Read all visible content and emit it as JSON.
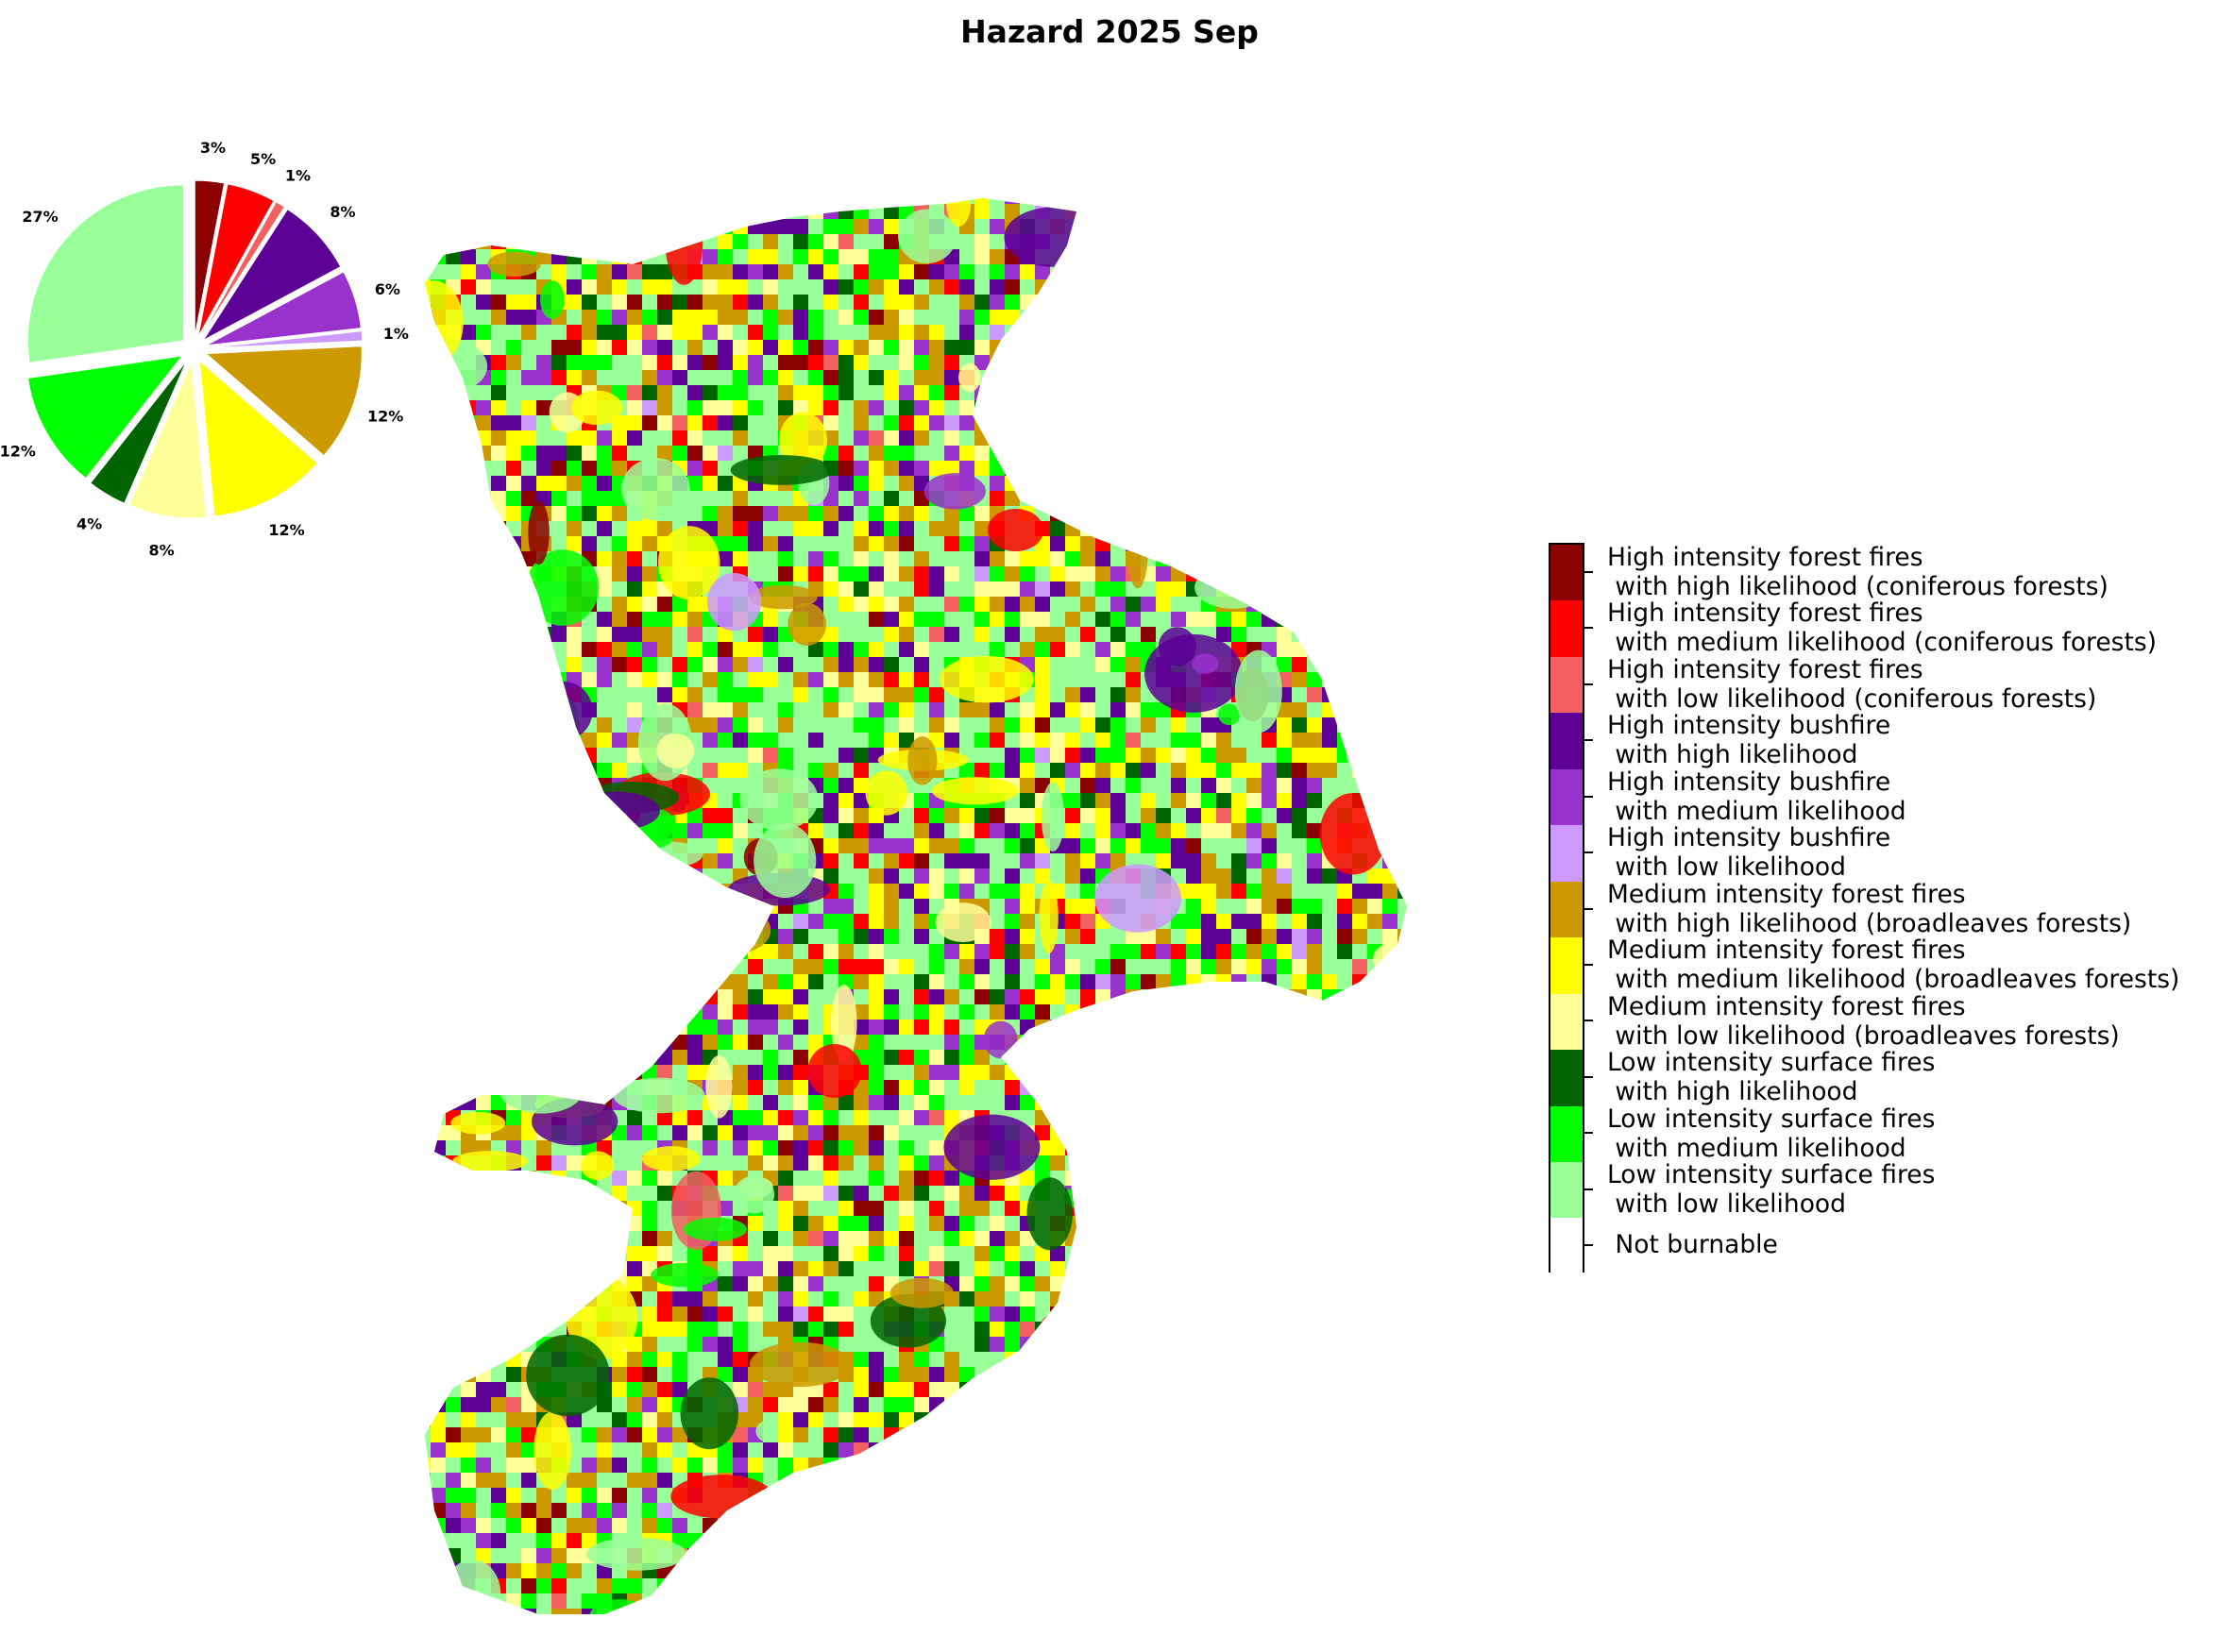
{
  "title": "Hazard 2025 Sep",
  "chart_data": {
    "type": "pie",
    "title": "Hazard 2025 Sep",
    "slices": [
      {
        "label": "High intensity forest fires\n with high likelihood (coniferous forests)",
        "value": 3,
        "text": "3%",
        "color": "#8b0000"
      },
      {
        "label": "High intensity forest fires\n with medium likelihood (coniferous forests)",
        "value": 5,
        "text": "5%",
        "color": "#ff0000"
      },
      {
        "label": "High intensity forest fires\n with low likelihood (coniferous forests)",
        "value": 1,
        "text": "1%",
        "color": "#f26060"
      },
      {
        "label": "High intensity bushfire\n with high likelihood",
        "value": 8,
        "text": "8%",
        "color": "#5c0096"
      },
      {
        "label": "High intensity bushfire\n with medium likelihood",
        "value": 6,
        "text": "6%",
        "color": "#9932cc"
      },
      {
        "label": "High intensity bushfire\n with low likelihood",
        "value": 1,
        "text": "1%",
        "color": "#cc99ff"
      },
      {
        "label": "Medium intensity forest fires\n with high likelihood (broadleaves forests)",
        "value": 12,
        "text": "12%",
        "color": "#cc9900"
      },
      {
        "label": "Medium intensity forest fires\n with medium likelihood (broadleaves forests)",
        "value": 12,
        "text": "12%",
        "color": "#ffff00"
      },
      {
        "label": "Medium intensity forest fires\n with low likelihood (broadleaves forests)",
        "value": 8,
        "text": "8%",
        "color": "#ffff99"
      },
      {
        "label": "Low intensity surface fires\n with high likelihood",
        "value": 4,
        "text": "4%",
        "color": "#006400"
      },
      {
        "label": "Low intensity surface fires\n with medium likelihood",
        "value": 12,
        "text": "12%",
        "color": "#00ff00"
      },
      {
        "label": "Low intensity surface fires\n with low likelihood",
        "value": 27,
        "text": "27%",
        "color": "#99ff99"
      }
    ]
  },
  "legend": [
    {
      "line1": "High intensity forest fires",
      "line2": " with high likelihood (coniferous forests)",
      "color": "#8b0000"
    },
    {
      "line1": "High intensity forest fires",
      "line2": " with medium likelihood (coniferous forests)",
      "color": "#ff0000"
    },
    {
      "line1": "High intensity forest fires",
      "line2": " with low likelihood (coniferous forests)",
      "color": "#f26060"
    },
    {
      "line1": "High intensity bushfire",
      "line2": " with high likelihood",
      "color": "#5c0096"
    },
    {
      "line1": "High intensity bushfire",
      "line2": " with medium likelihood",
      "color": "#9932cc"
    },
    {
      "line1": "High intensity bushfire",
      "line2": " with low likelihood",
      "color": "#cc99ff"
    },
    {
      "line1": "Medium intensity forest fires",
      "line2": " with high likelihood (broadleaves forests)",
      "color": "#cc9900"
    },
    {
      "line1": "Medium intensity forest fires",
      "line2": " with medium likelihood (broadleaves forests)",
      "color": "#ffff00"
    },
    {
      "line1": "Medium intensity forest fires",
      "line2": " with low likelihood (broadleaves forests)",
      "color": "#ffff99"
    },
    {
      "line1": "Low intensity surface fires",
      "line2": " with high likelihood",
      "color": "#006400"
    },
    {
      "line1": "Low intensity surface fires",
      "line2": " with medium likelihood",
      "color": "#00ff00"
    },
    {
      "line1": "Low intensity surface fires",
      "line2": " with low likelihood",
      "color": "#99ff99"
    },
    {
      "line1": " Not burnable",
      "line2": "",
      "color": "#ffffff"
    }
  ]
}
